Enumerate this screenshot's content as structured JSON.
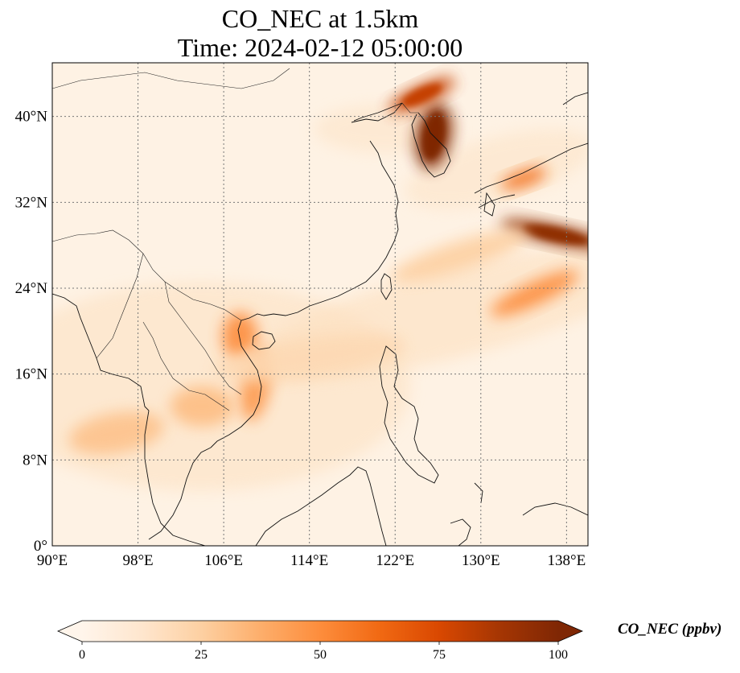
{
  "title": {
    "line1": "CO_NEC at 1.5km",
    "line2": "Time: 2024-02-12 05:00:00"
  },
  "map": {
    "variable": "CO_NEC",
    "extent": {
      "lon_min": 90,
      "lon_max": 140,
      "lat_min": 0,
      "lat_max": 45
    },
    "gridlines": true,
    "gridline_style": "dotted",
    "lon_ticks": [
      {
        "value": 90,
        "label": "90°E"
      },
      {
        "value": 98,
        "label": "98°E"
      },
      {
        "value": 106,
        "label": "106°E"
      },
      {
        "value": 114,
        "label": "114°E"
      },
      {
        "value": 122,
        "label": "122°E"
      },
      {
        "value": 130,
        "label": "130°E"
      },
      {
        "value": 138,
        "label": "138°E"
      }
    ],
    "lat_ticks": [
      {
        "value": 0,
        "label": "0°"
      },
      {
        "value": 8,
        "label": "8°N"
      },
      {
        "value": 16,
        "label": "16°N"
      },
      {
        "value": 24,
        "label": "24°N"
      },
      {
        "value": 32,
        "label": "32°N"
      },
      {
        "value": 40,
        "label": "40°N"
      }
    ],
    "plumes": [
      {
        "name": "korea-peninsula",
        "lon": 125.6,
        "lat": 38.2,
        "value": 100
      },
      {
        "name": "bohai-north",
        "lon": 124.5,
        "lat": 42.0,
        "value": 80
      },
      {
        "name": "japan-band",
        "lon": 137.0,
        "lat": 29.0,
        "value": 95
      },
      {
        "name": "japan-honshu",
        "lon": 134.0,
        "lat": 34.2,
        "value": 60
      },
      {
        "name": "pacific-band",
        "lon": 135.0,
        "lat": 23.5,
        "value": 50
      },
      {
        "name": "gulf-of-tonkin",
        "lon": 107.5,
        "lat": 19.5,
        "value": 50
      },
      {
        "name": "vietnam-coast",
        "lon": 109.0,
        "lat": 15.0,
        "value": 45
      },
      {
        "name": "indochina-west",
        "lon": 96.0,
        "lat": 10.5,
        "value": 30
      },
      {
        "name": "cambodia",
        "lon": 104.0,
        "lat": 13.0,
        "value": 32
      },
      {
        "name": "south-china-sea",
        "lon": 114.0,
        "lat": 17.5,
        "value": 20
      },
      {
        "name": "east-china-sea",
        "lon": 128.0,
        "lat": 27.0,
        "value": 25
      }
    ]
  },
  "colorbar": {
    "label": "CO_NEC (ppbv)",
    "min": 0,
    "max": 100,
    "extend": "both",
    "ticks": [
      {
        "value": 0,
        "label": "0"
      },
      {
        "value": 25,
        "label": "25"
      },
      {
        "value": 50,
        "label": "50"
      },
      {
        "value": 75,
        "label": "75"
      },
      {
        "value": 100,
        "label": "100"
      }
    ],
    "colormap": [
      "#fff5eb",
      "#fee6ce",
      "#fdd0a2",
      "#fdae6b",
      "#fd8d3c",
      "#f16913",
      "#d94801",
      "#a63603",
      "#7f2704"
    ]
  }
}
